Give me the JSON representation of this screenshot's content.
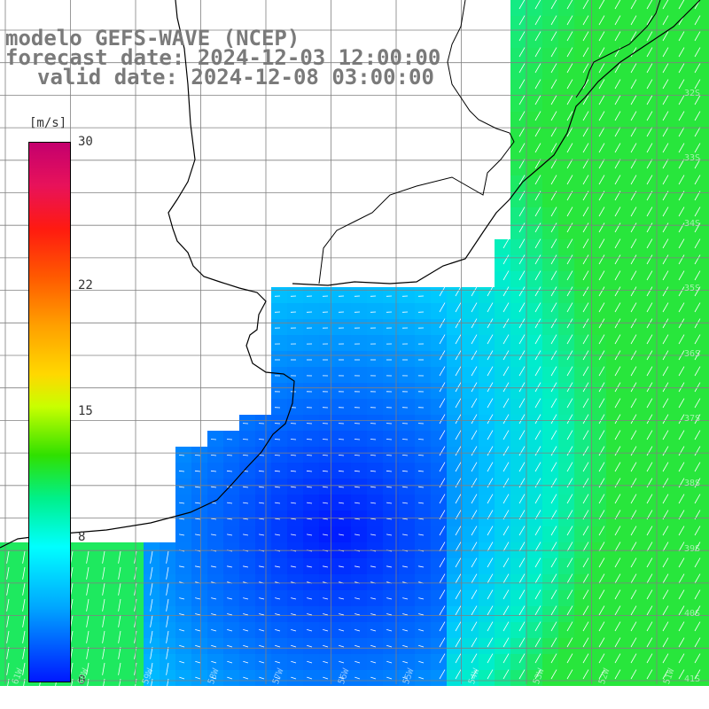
{
  "title": {
    "line1": "modelo GEFS-WAVE (NCEP)",
    "line2": "forecast date: 2024-12-03 12:00:00",
    "line3": "valid date: 2024-12-08 03:00:00"
  },
  "colorbar": {
    "units": "[m/s]",
    "ticks": [
      {
        "label": "30",
        "value": 30
      },
      {
        "label": "22",
        "value": 22
      },
      {
        "label": "15",
        "value": 15
      },
      {
        "label": "8",
        "value": 8
      },
      {
        "label": "0",
        "value": 0
      }
    ],
    "range": [
      0,
      30
    ]
  },
  "lat_labels": [
    "32S",
    "33S",
    "34S",
    "35S",
    "36S",
    "37S",
    "38S",
    "39S",
    "40S",
    "41S"
  ],
  "lon_labels": [
    "61W",
    "60W",
    "59W",
    "58W",
    "57W",
    "56W",
    "55W",
    "54W",
    "53W",
    "52W",
    "51W"
  ],
  "colors": {
    "land": "#ffffff",
    "grid": "#808080",
    "coast": "#000000",
    "arrow": "#ffffff"
  }
}
